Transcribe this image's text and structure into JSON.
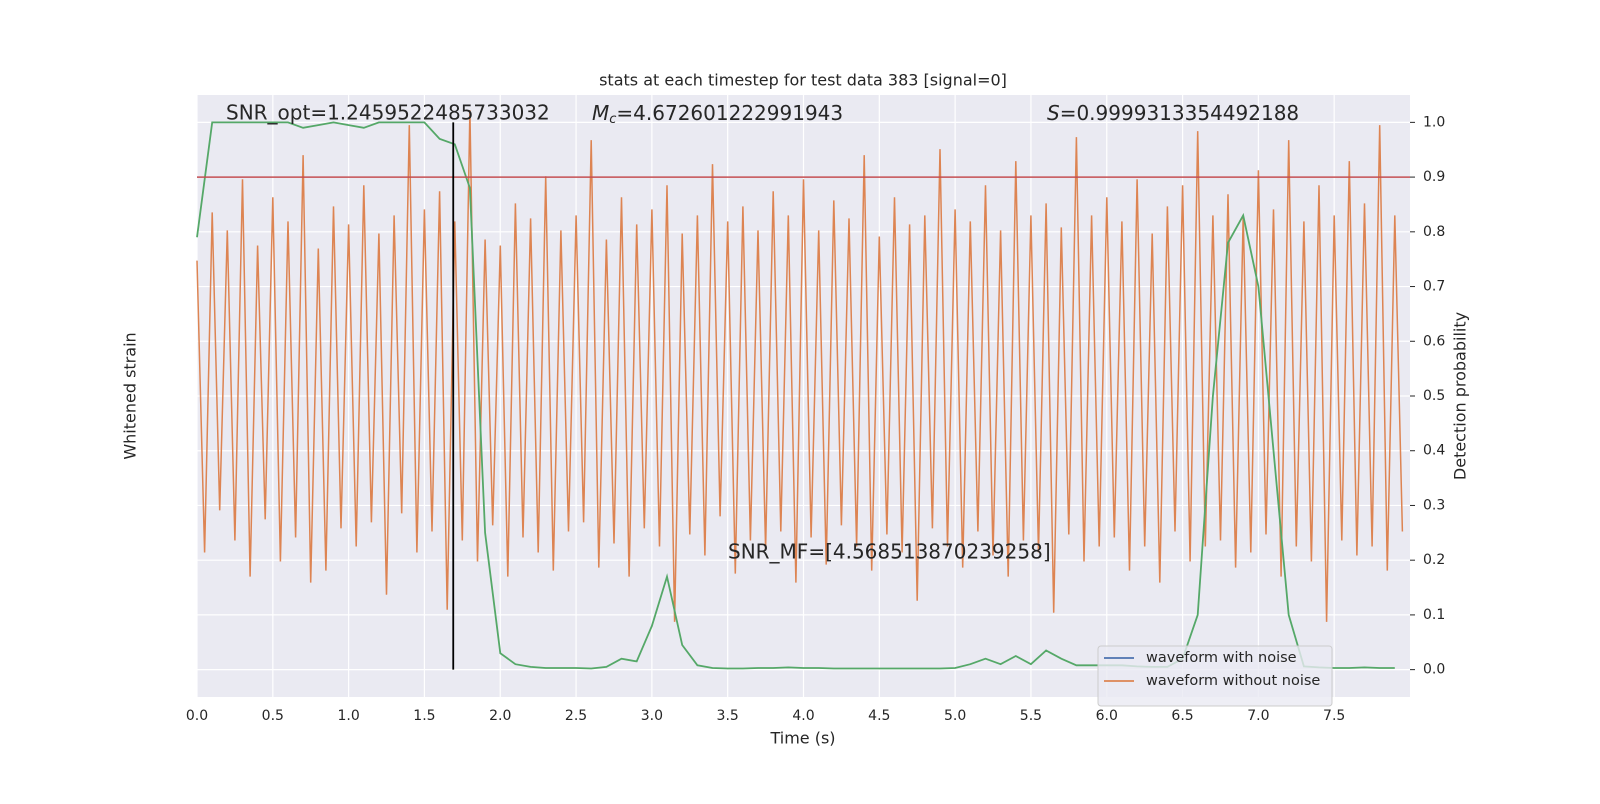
{
  "chart_data": {
    "type": "line",
    "title": "stats at each timestep for test data 383 [signal=0]",
    "xlabel": "Time (s)",
    "ylabel": "Whitened strain",
    "y2label": "Detection probability",
    "xlim": [
      0,
      8
    ],
    "ylim": [
      -1,
      1
    ],
    "y2lim": [
      -0.05,
      1.05
    ],
    "xticks": [
      {
        "value": 0,
        "label": "0.0"
      },
      {
        "value": 0.5,
        "label": "0.5"
      },
      {
        "value": 1,
        "label": "1.0"
      },
      {
        "value": 1.5,
        "label": "1.5"
      },
      {
        "value": 2,
        "label": "2.0"
      },
      {
        "value": 2.5,
        "label": "2.5"
      },
      {
        "value": 3,
        "label": "3.0"
      },
      {
        "value": 3.5,
        "label": "3.5"
      },
      {
        "value": 4,
        "label": "4.0"
      },
      {
        "value": 4.5,
        "label": "4.5"
      },
      {
        "value": 5,
        "label": "5.0"
      },
      {
        "value": 5.5,
        "label": "5.5"
      },
      {
        "value": 6,
        "label": "6.0"
      },
      {
        "value": 6.5,
        "label": "6.5"
      },
      {
        "value": 7,
        "label": "7.0"
      },
      {
        "value": 7.5,
        "label": "7.5"
      }
    ],
    "y2ticks": [
      {
        "value": 0,
        "label": "0.0"
      },
      0.1,
      0.2,
      0.3,
      0.4,
      0.5,
      0.6,
      0.7,
      0.8,
      0.9,
      {
        "value": 1,
        "label": "1.0"
      }
    ],
    "grid": true,
    "legend": "lower right",
    "annotations": {
      "snr_opt": "SNR_opt=1.2459522485733032",
      "mc": {
        "symbol": "M",
        "subscript": "c",
        "text": "=4.672601222991943"
      },
      "s": {
        "symbol": "S",
        "text": "=0.9999313354492188"
      },
      "snr_mf": "SNR_MF=[4.568513870239258]"
    },
    "threshold": {
      "value": 0.9,
      "color": "#c44e52"
    },
    "marker_x": 1.69,
    "x": [
      0,
      0.05,
      0.1,
      0.15,
      0.2,
      0.25,
      0.3,
      0.35,
      0.4,
      0.45,
      0.5,
      0.55,
      0.6,
      0.65,
      0.7,
      0.75,
      0.8,
      0.85,
      0.9,
      0.95,
      1,
      1.05,
      1.1,
      1.15,
      1.2,
      1.25,
      1.3,
      1.35,
      1.4,
      1.45,
      1.5,
      1.55,
      1.6,
      1.65,
      1.7,
      1.75,
      1.8,
      1.85,
      1.9,
      1.95,
      2,
      2.05,
      2.1,
      2.15,
      2.2,
      2.25,
      2.3,
      2.35,
      2.4,
      2.45,
      2.5,
      2.55,
      2.6,
      2.65,
      2.7,
      2.75,
      2.8,
      2.85,
      2.9,
      2.95,
      3,
      3.05,
      3.1,
      3.15,
      3.2,
      3.25,
      3.3,
      3.35,
      3.4,
      3.45,
      3.5,
      3.55,
      3.6,
      3.65,
      3.7,
      3.75,
      3.8,
      3.85,
      3.9,
      3.95,
      4,
      4.05,
      4.1,
      4.15,
      4.2,
      4.25,
      4.3,
      4.35,
      4.4,
      4.45,
      4.5,
      4.55,
      4.6,
      4.65,
      4.7,
      4.75,
      4.8,
      4.85,
      4.9,
      4.95,
      5,
      5.05,
      5.1,
      5.15,
      5.2,
      5.25,
      5.3,
      5.35,
      5.4,
      5.45,
      5.5,
      5.55,
      5.6,
      5.65,
      5.7,
      5.75,
      5.8,
      5.85,
      5.9,
      5.95,
      6,
      6.05,
      6.1,
      6.15,
      6.2,
      6.25,
      6.3,
      6.35,
      6.4,
      6.45,
      6.5,
      6.55,
      6.6,
      6.65,
      6.7,
      6.75,
      6.8,
      6.85,
      6.9,
      6.95,
      7,
      7.05,
      7.1,
      7.15,
      7.2,
      7.25,
      7.3,
      7.35,
      7.4,
      7.45,
      7.5,
      7.55,
      7.6,
      7.65,
      7.7,
      7.75,
      7.8,
      7.85,
      7.9,
      7.95
    ],
    "series": [
      {
        "name": "waveform with noise",
        "color": "#4c72b0"
      },
      {
        "name": "waveform without noise",
        "color": "#dd8452",
        "values": [
          0.45,
          -0.52,
          0.61,
          -0.38,
          0.55,
          -0.48,
          0.72,
          -0.6,
          0.5,
          -0.41,
          0.66,
          -0.55,
          0.58,
          -0.47,
          0.8,
          -0.62,
          0.49,
          -0.58,
          0.63,
          -0.44,
          0.57,
          -0.5,
          0.7,
          -0.42,
          0.54,
          -0.66,
          0.6,
          -0.39,
          0.9,
          -0.52,
          0.62,
          -0.45,
          0.68,
          -0.71,
          0.58,
          -0.48,
          0.95,
          -0.55,
          0.52,
          -0.43,
          0.5,
          -0.6,
          0.64,
          -0.47,
          0.59,
          -0.52,
          0.73,
          -0.58,
          0.55,
          -0.45,
          0.6,
          -0.42,
          0.85,
          -0.57,
          0.52,
          -0.49,
          0.66,
          -0.6,
          0.57,
          -0.44,
          0.62,
          -0.5,
          0.7,
          -0.75,
          0.54,
          -0.46,
          0.6,
          -0.53,
          0.77,
          -0.4,
          0.58,
          -0.59,
          0.63,
          -0.48,
          0.55,
          -0.51,
          0.68,
          -0.45,
          0.6,
          -0.62,
          0.72,
          -0.47,
          0.55,
          -0.56,
          0.65,
          -0.43,
          0.59,
          -0.5,
          0.8,
          -0.58,
          0.53,
          -0.46,
          0.66,
          -0.52,
          0.57,
          -0.68,
          0.6,
          -0.44,
          0.82,
          -0.5,
          0.62,
          -0.57,
          0.58,
          -0.45,
          0.7,
          -0.53,
          0.55,
          -0.6,
          0.78,
          -0.48,
          0.6,
          -0.52,
          0.64,
          -0.72,
          0.56,
          -0.46,
          0.86,
          -0.55,
          0.6,
          -0.5,
          0.66,
          -0.47,
          0.58,
          -0.58,
          0.72,
          -0.5,
          0.54,
          -0.62,
          0.63,
          -0.45,
          0.7,
          -0.55,
          0.88,
          -0.5,
          0.6,
          -0.48,
          0.67,
          -0.57,
          0.6,
          -0.52,
          0.75,
          -0.46,
          0.62,
          -0.6,
          0.85,
          -0.5,
          0.58,
          -0.55,
          0.7,
          -0.75,
          0.6,
          -0.48,
          0.78,
          -0.53,
          0.64,
          -0.5,
          0.9,
          -0.58,
          0.6,
          -0.45
        ]
      }
    ],
    "probability": {
      "color": "#55a868",
      "axis": "y2",
      "x": [
        0,
        0.1,
        0.2,
        0.3,
        0.4,
        0.5,
        0.6,
        0.7,
        0.8,
        0.9,
        1,
        1.1,
        1.2,
        1.3,
        1.4,
        1.5,
        1.6,
        1.7,
        1.8,
        1.9,
        2,
        2.1,
        2.2,
        2.3,
        2.4,
        2.5,
        2.6,
        2.7,
        2.8,
        2.9,
        3,
        3.1,
        3.2,
        3.3,
        3.4,
        3.5,
        3.6,
        3.7,
        3.8,
        3.9,
        4,
        4.1,
        4.2,
        4.3,
        4.4,
        4.5,
        4.6,
        4.7,
        4.8,
        4.9,
        5,
        5.1,
        5.2,
        5.3,
        5.4,
        5.5,
        5.6,
        5.7,
        5.8,
        5.9,
        6,
        6.1,
        6.2,
        6.3,
        6.4,
        6.5,
        6.6,
        6.7,
        6.8,
        6.9,
        7,
        7.1,
        7.2,
        7.3,
        7.4,
        7.5,
        7.6,
        7.7,
        7.8,
        7.9
      ],
      "values": [
        0.79,
        1,
        1,
        1,
        1,
        1,
        1,
        0.99,
        0.995,
        1,
        0.995,
        0.99,
        1,
        1,
        1,
        1,
        0.97,
        0.96,
        0.88,
        0.25,
        0.03,
        0.01,
        0.005,
        0.003,
        0.003,
        0.003,
        0.002,
        0.005,
        0.02,
        0.015,
        0.08,
        0.17,
        0.045,
        0.008,
        0.003,
        0.002,
        0.002,
        0.003,
        0.003,
        0.004,
        0.003,
        0.003,
        0.002,
        0.002,
        0.002,
        0.002,
        0.002,
        0.002,
        0.002,
        0.002,
        0.003,
        0.01,
        0.02,
        0.01,
        0.025,
        0.01,
        0.035,
        0.02,
        0.008,
        0.008,
        0.008,
        0.008,
        0.006,
        0.005,
        0.005,
        0.02,
        0.1,
        0.5,
        0.78,
        0.83,
        0.7,
        0.4,
        0.1,
        0.006,
        0.004,
        0.003,
        0.003,
        0.004,
        0.003,
        0.003
      ]
    }
  }
}
